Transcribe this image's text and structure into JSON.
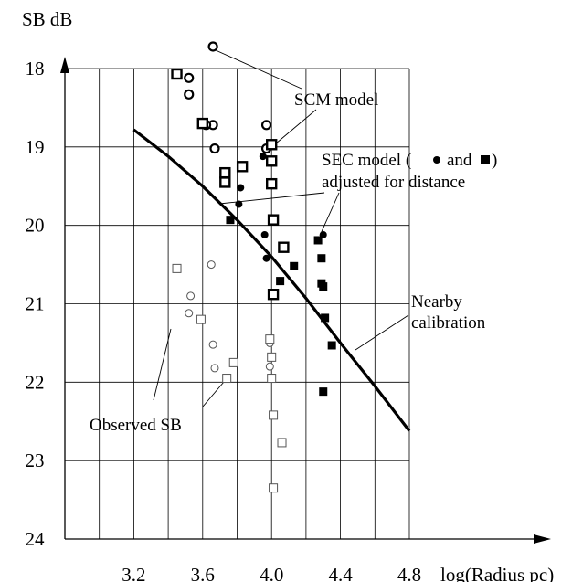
{
  "chart_data": {
    "type": "scatter",
    "title": "",
    "xlabel": "log(Radius pc)",
    "ylabel": "SB dB",
    "xlim": [
      2.8,
      4.8
    ],
    "ylim": [
      24,
      17.9
    ],
    "y_inverted": true,
    "grid": true,
    "x_ticks": [
      "3.2",
      "3.6",
      "4.0",
      "4.4",
      "4.8"
    ],
    "y_ticks": [
      "18",
      "19",
      "20",
      "21",
      "22",
      "23",
      "24"
    ],
    "x_tick_values": [
      3.2,
      3.6,
      4.0,
      4.4,
      4.8
    ],
    "y_tick_values": [
      18,
      19,
      20,
      21,
      22,
      23,
      24
    ],
    "series": [
      {
        "marker": "open-circle-bold",
        "points": [
          [
            3.66,
            17.72
          ],
          [
            3.52,
            18.12
          ],
          [
            3.52,
            18.33
          ],
          [
            3.66,
            18.72
          ],
          [
            3.62,
            18.72
          ],
          [
            3.67,
            19.02
          ],
          [
            3.97,
            18.72
          ],
          [
            3.97,
            19.02
          ]
        ]
      },
      {
        "marker": "open-square-bold",
        "points": [
          [
            3.45,
            18.07
          ],
          [
            3.6,
            18.7
          ],
          [
            4.0,
            18.97
          ],
          [
            4.0,
            19.18
          ],
          [
            3.73,
            19.33
          ],
          [
            3.73,
            19.45
          ],
          [
            3.83,
            19.25
          ],
          [
            4.0,
            19.47
          ],
          [
            4.01,
            19.93
          ],
          [
            4.07,
            20.28
          ],
          [
            4.01,
            20.88
          ]
        ]
      },
      {
        "marker": "filled-circle",
        "points": [
          [
            3.95,
            19.12
          ],
          [
            3.82,
            19.52
          ],
          [
            3.81,
            19.73
          ],
          [
            3.96,
            20.12
          ],
          [
            3.97,
            20.42
          ],
          [
            4.3,
            20.12
          ]
        ]
      },
      {
        "marker": "filled-square",
        "points": [
          [
            3.76,
            19.93
          ],
          [
            4.27,
            20.19
          ],
          [
            4.29,
            20.42
          ],
          [
            4.29,
            20.74
          ],
          [
            4.3,
            20.78
          ],
          [
            4.13,
            20.52
          ],
          [
            4.05,
            20.71
          ],
          [
            4.31,
            21.18
          ],
          [
            4.35,
            21.53
          ],
          [
            4.3,
            22.12
          ]
        ]
      },
      {
        "marker": "open-circle-thin",
        "points": [
          [
            3.65,
            20.5
          ],
          [
            3.53,
            20.9
          ],
          [
            3.52,
            21.12
          ],
          [
            3.66,
            21.52
          ],
          [
            3.67,
            21.82
          ],
          [
            3.99,
            21.5
          ],
          [
            3.99,
            21.8
          ]
        ]
      },
      {
        "marker": "open-square-thin",
        "points": [
          [
            3.45,
            20.55
          ],
          [
            3.59,
            21.2
          ],
          [
            3.78,
            21.75
          ],
          [
            3.74,
            21.95
          ],
          [
            3.99,
            21.45
          ],
          [
            4.0,
            21.68
          ],
          [
            4.0,
            21.95
          ],
          [
            4.01,
            22.42
          ],
          [
            4.06,
            22.77
          ],
          [
            4.01,
            23.35
          ]
        ]
      },
      {
        "type": "line",
        "marker": "none",
        "points": [
          [
            3.2,
            18.78
          ],
          [
            3.4,
            19.12
          ],
          [
            3.6,
            19.5
          ],
          [
            3.8,
            19.93
          ],
          [
            4.0,
            20.4
          ],
          [
            4.2,
            20.93
          ],
          [
            4.4,
            21.5
          ],
          [
            4.6,
            22.05
          ],
          [
            4.8,
            22.62
          ]
        ]
      }
    ],
    "annotations": [
      {
        "text": "SCM model",
        "lines": [
          "SCM model"
        ]
      },
      {
        "text": "SEC model ( and ) adjusted for distance",
        "lines": [
          "SEC model (",
          "and",
          ")",
          "adjusted for distance"
        ]
      },
      {
        "text": "Nearby calibration",
        "lines": [
          "Nearby",
          "calibration"
        ]
      },
      {
        "text": "Observed SB",
        "lines": [
          "Observed SB"
        ]
      }
    ]
  }
}
